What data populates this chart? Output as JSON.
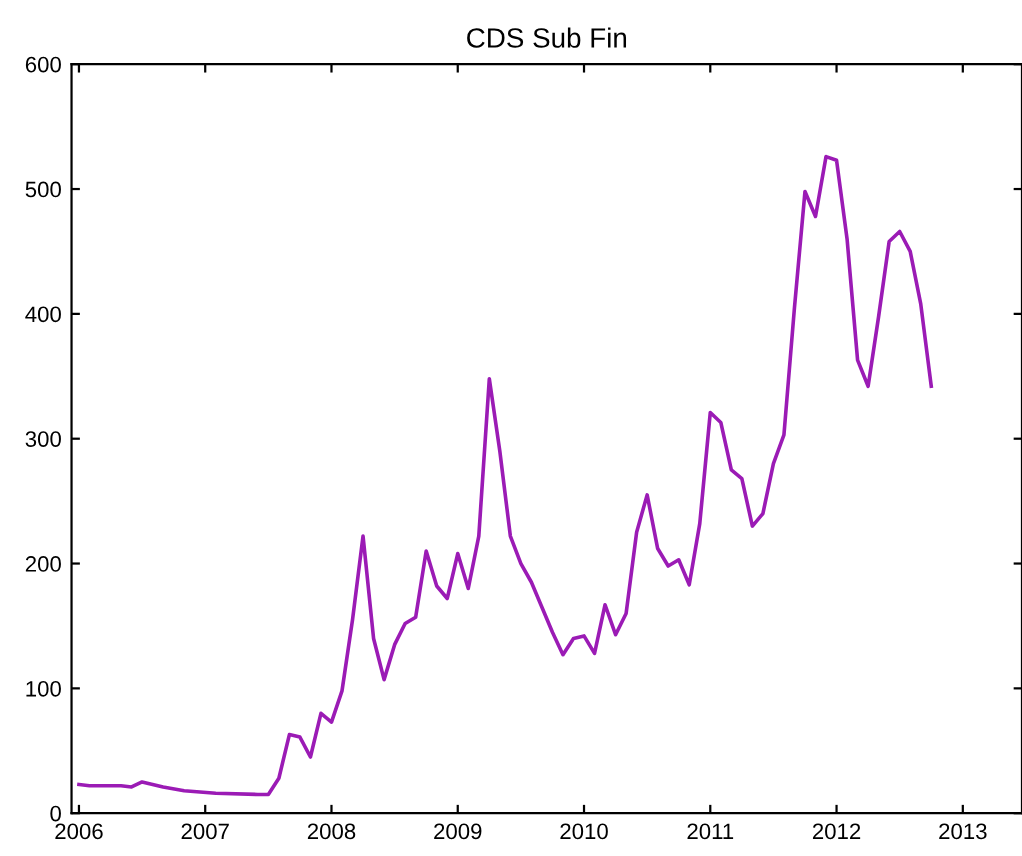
{
  "chart_data": {
    "type": "line",
    "title": "CDS Sub Fin",
    "x": [
      "2006-01",
      "2006-02",
      "2006-03",
      "2006-05",
      "2006-06",
      "2006-07",
      "2006-09",
      "2006-11",
      "2007-02",
      "2007-06",
      "2007-07",
      "2007-08",
      "2007-09",
      "2007-10",
      "2007-11",
      "2007-12",
      "2008-01",
      "2008-02",
      "2008-03",
      "2008-04",
      "2008-05",
      "2008-06",
      "2008-07",
      "2008-08",
      "2008-09",
      "2008-10",
      "2008-11",
      "2008-12",
      "2009-01",
      "2009-02",
      "2009-03",
      "2009-04",
      "2009-05",
      "2009-06",
      "2009-07",
      "2009-08",
      "2009-09",
      "2009-10",
      "2009-11",
      "2009-12",
      "2010-01",
      "2010-02",
      "2010-03",
      "2010-04",
      "2010-05",
      "2010-06",
      "2010-07",
      "2010-08",
      "2010-09",
      "2010-10",
      "2010-11",
      "2010-12",
      "2011-01",
      "2011-02",
      "2011-03",
      "2011-04",
      "2011-05",
      "2011-06",
      "2011-07",
      "2011-08",
      "2011-09",
      "2011-10",
      "2011-11",
      "2011-12",
      "2012-01",
      "2012-02",
      "2012-03",
      "2012-04",
      "2012-05",
      "2012-06",
      "2012-07",
      "2012-08",
      "2012-09",
      "2012-10"
    ],
    "series": [
      {
        "color": "#9b1bb5",
        "values": [
          23,
          22,
          22,
          22,
          21,
          25,
          21,
          18,
          16,
          15,
          15,
          28,
          63,
          61,
          45,
          80,
          73,
          98,
          155,
          222,
          140,
          107,
          135,
          152,
          157,
          210,
          182,
          172,
          208,
          180,
          222,
          348,
          290,
          222,
          200,
          185,
          165,
          145,
          127,
          140,
          142,
          128,
          167,
          143,
          160,
          225,
          255,
          212,
          198,
          203,
          183,
          232,
          321,
          313,
          275,
          268,
          230,
          240,
          280,
          303,
          405,
          498,
          478,
          526,
          523,
          460,
          363,
          342,
          398,
          458,
          466,
          450,
          408,
          342
        ]
      }
    ],
    "xlim": [
      "2005-12-10",
      "2013-06-20"
    ],
    "xticks": [
      "2006",
      "2007",
      "2008",
      "2009",
      "2010",
      "2011",
      "2012",
      "2013"
    ],
    "ylim": [
      0,
      600
    ],
    "yticks": [
      0,
      100,
      200,
      300,
      400,
      500,
      600
    ],
    "grid": false,
    "legend": false
  }
}
